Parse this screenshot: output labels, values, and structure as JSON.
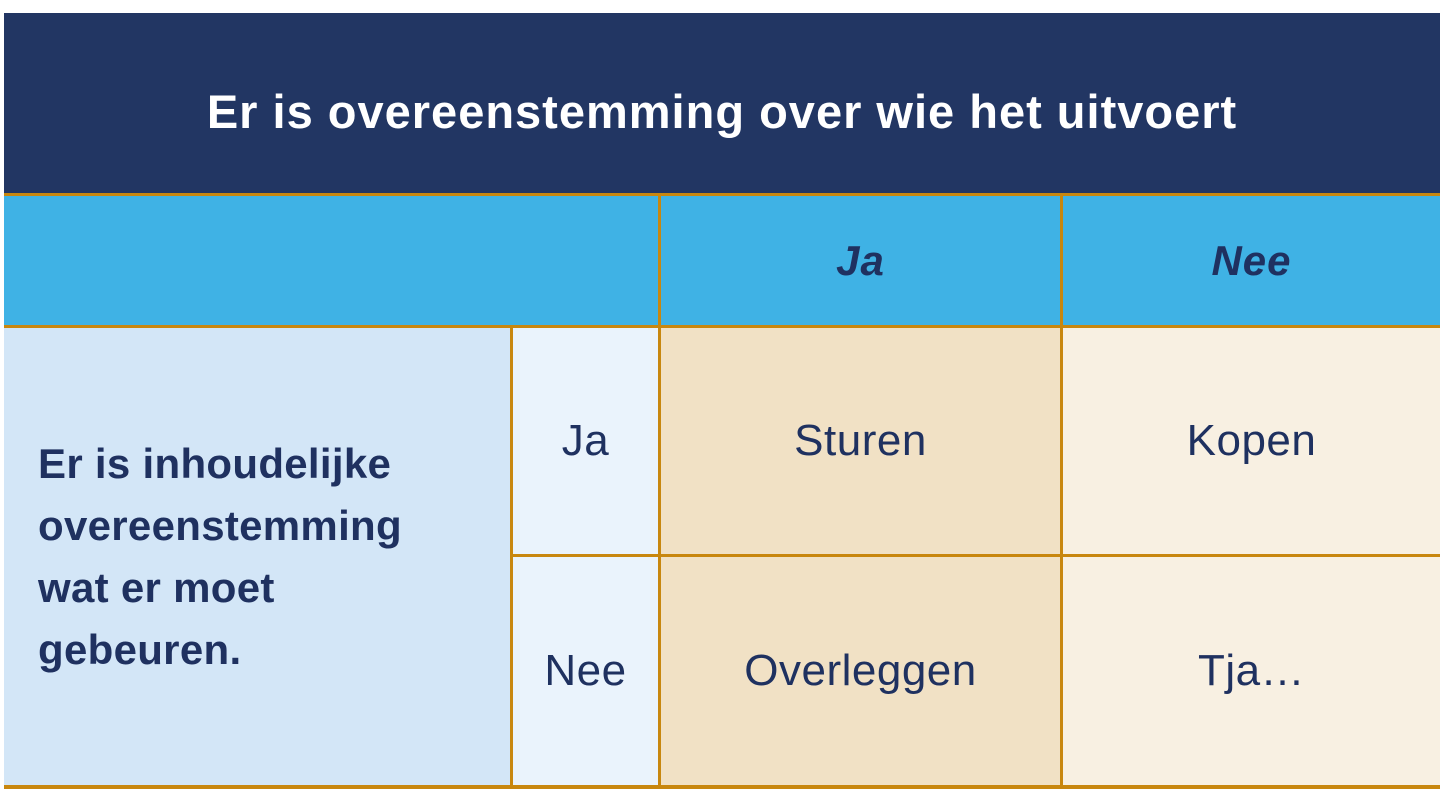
{
  "title": "Er is overeenstemming over wie het uitvoert",
  "matrix": {
    "column_axis_headers": [
      "Ja",
      "Nee"
    ],
    "row_axis_label": "Er is inhoudelijke overeenstemming wat er moet gebeuren.",
    "rows": [
      {
        "label": "Ja",
        "cells": [
          "Sturen",
          "Kopen"
        ]
      },
      {
        "label": "Nee",
        "cells": [
          "Overleggen",
          "Tja…"
        ]
      }
    ]
  },
  "colors": {
    "navy": "#223663",
    "text-navy": "#1f3160",
    "blue": "#3fb2e5",
    "gold": "#c8870f",
    "desc-bg": "#d3e6f7",
    "sub-bg": "#eaf3fc",
    "tan": "#f1e1c5",
    "cream": "#f8f0e2",
    "page-bg": "#ffffff",
    "title-color": "#ffffff"
  }
}
